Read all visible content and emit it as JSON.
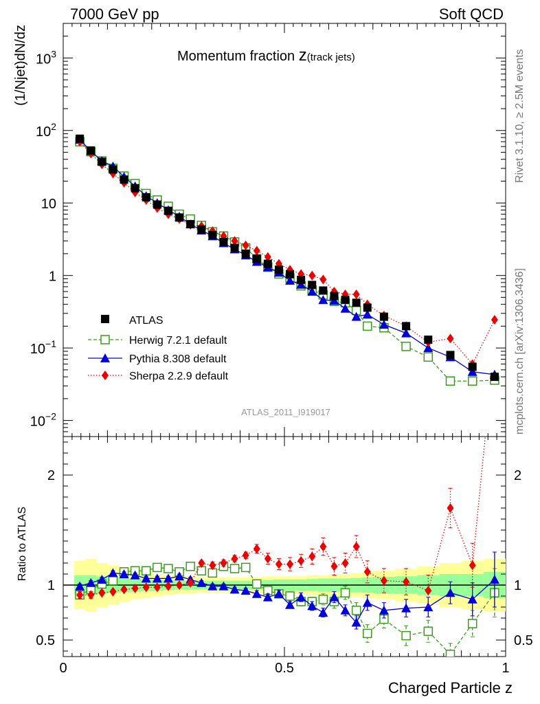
{
  "header": {
    "left": "7000 GeV pp",
    "right": "Soft QCD"
  },
  "title_main": "Momentum fraction ",
  "title_z": "z",
  "title_sub": "(track jets)",
  "side_label_top": "Rivet 3.1.10, ≥ 2.5M events",
  "side_label_bottom": "mcplots.cern.ch [arXiv:1306.3436]",
  "analysis_id": "ATLAS_2011_I919017",
  "colors": {
    "atlas": "#000000",
    "herwig": "#3a9c1c",
    "pythia": "#0000dd",
    "sherpa": "#ee0000",
    "band_inner": "#99ff99",
    "band_outer": "#ffff99"
  },
  "chart_data": [
    {
      "type": "scatter",
      "name": "main",
      "ylabel": "(1/Njet)dN/dz",
      "yscale": "log",
      "ylim": [
        0.006,
        3000
      ],
      "xlim": [
        0,
        1
      ],
      "yticks": [
        {
          "value": 0.01,
          "base": "10",
          "exp": "−2"
        },
        {
          "value": 0.1,
          "base": "10",
          "exp": "−1"
        },
        {
          "value": 1,
          "label": "1"
        },
        {
          "value": 10,
          "label": "10"
        },
        {
          "value": 100,
          "base": "10",
          "exp": "2"
        },
        {
          "value": 1000,
          "base": "10",
          "exp": "3"
        }
      ],
      "x": [
        0.0375,
        0.0625,
        0.0875,
        0.1125,
        0.1375,
        0.1625,
        0.1875,
        0.2125,
        0.2375,
        0.2625,
        0.2875,
        0.3125,
        0.3375,
        0.3625,
        0.3875,
        0.4125,
        0.4375,
        0.4625,
        0.4875,
        0.5125,
        0.5375,
        0.5625,
        0.5875,
        0.6125,
        0.6375,
        0.6625,
        0.6875,
        0.725,
        0.775,
        0.825,
        0.875,
        0.925,
        0.975
      ],
      "series": [
        {
          "name": "ATLAS",
          "key": "atlas",
          "values": [
            77,
            53,
            37,
            29,
            21,
            16,
            12,
            9.5,
            7.8,
            6.3,
            5.1,
            4.3,
            3.6,
            2.9,
            2.4,
            2.0,
            1.7,
            1.45,
            1.2,
            1.04,
            0.87,
            0.74,
            0.62,
            0.52,
            0.46,
            0.42,
            0.36,
            0.27,
            0.2,
            0.13,
            0.08,
            0.055,
            0.04
          ]
        },
        {
          "name": "Herwig 7.2.1 default",
          "key": "herwig",
          "values": [
            70,
            51,
            38,
            30,
            23.5,
            18.5,
            13.5,
            11,
            9.0,
            7.0,
            6.0,
            4.9,
            4.0,
            3.5,
            2.9,
            2.4,
            1.7,
            1.3,
            1.05,
            0.92,
            0.72,
            0.63,
            0.54,
            0.44,
            0.42,
            0.33,
            0.2,
            0.19,
            0.105,
            0.075,
            0.035,
            0.035,
            0.036
          ]
        },
        {
          "name": "Pythia 8.308 default",
          "key": "pythia",
          "values": [
            75,
            52,
            38,
            32,
            23,
            17,
            12.5,
            10,
            8.0,
            6.5,
            5.1,
            4.2,
            3.5,
            2.8,
            2.3,
            1.9,
            1.55,
            1.3,
            1.1,
            0.85,
            0.75,
            0.6,
            0.46,
            0.45,
            0.35,
            0.27,
            0.29,
            0.21,
            0.16,
            0.1,
            0.075,
            0.047,
            0.043
          ]
        },
        {
          "name": "Sherpa 2.2.9 default",
          "key": "sherpa",
          "values": [
            70,
            48,
            34,
            25.5,
            19,
            14,
            11,
            8.5,
            7.0,
            6.0,
            5.0,
            4.8,
            4.1,
            3.5,
            3.0,
            2.6,
            2.2,
            1.8,
            1.45,
            1.2,
            1.05,
            1.0,
            0.88,
            0.6,
            0.55,
            0.55,
            0.4,
            0.28,
            0.2,
            0.12,
            0.135,
            0.06,
            0.245
          ]
        }
      ]
    },
    {
      "type": "line",
      "name": "ratio",
      "ylabel": "Ratio to ATLAS",
      "ylim": [
        0.35,
        2.35
      ],
      "xlim": [
        0,
        1
      ],
      "xlabel": "Charged Particle z",
      "xticks": [
        {
          "value": 0,
          "label": "0"
        },
        {
          "value": 0.5,
          "label": "0.5"
        },
        {
          "value": 1,
          "label": "1"
        }
      ],
      "yticks": [
        {
          "value": 0.5,
          "label": "0.5"
        },
        {
          "value": 1,
          "label": "1"
        },
        {
          "value": 2,
          "label": "2"
        }
      ],
      "reference_line": 1,
      "band_edges": [
        0.025,
        0.05,
        0.075,
        0.1,
        0.125,
        0.15,
        0.175,
        0.2,
        0.225,
        0.25,
        0.275,
        0.3,
        0.325,
        0.35,
        0.375,
        0.4,
        0.425,
        0.45,
        0.475,
        0.5,
        0.525,
        0.55,
        0.575,
        0.6,
        0.625,
        0.65,
        0.675,
        0.7,
        0.75,
        0.8,
        0.85,
        0.9,
        0.95,
        1.0
      ],
      "band_inner": [
        0.09,
        0.09,
        0.08,
        0.07,
        0.065,
        0.06,
        0.055,
        0.05,
        0.045,
        0.04,
        0.04,
        0.04,
        0.04,
        0.04,
        0.04,
        0.04,
        0.04,
        0.045,
        0.05,
        0.05,
        0.05,
        0.055,
        0.06,
        0.06,
        0.06,
        0.065,
        0.07,
        0.075,
        0.08,
        0.09,
        0.1,
        0.1,
        0.12
      ],
      "band_outer": [
        0.22,
        0.24,
        0.2,
        0.18,
        0.15,
        0.13,
        0.12,
        0.1,
        0.09,
        0.08,
        0.08,
        0.07,
        0.07,
        0.07,
        0.07,
        0.07,
        0.07,
        0.08,
        0.08,
        0.08,
        0.08,
        0.09,
        0.09,
        0.1,
        0.1,
        0.11,
        0.12,
        0.13,
        0.15,
        0.17,
        0.2,
        0.22,
        0.24
      ],
      "x": [
        0.0375,
        0.0625,
        0.0875,
        0.1125,
        0.1375,
        0.1625,
        0.1875,
        0.2125,
        0.2375,
        0.2625,
        0.2875,
        0.3125,
        0.3375,
        0.3625,
        0.3875,
        0.4125,
        0.4375,
        0.4625,
        0.4875,
        0.5125,
        0.5375,
        0.5625,
        0.5875,
        0.6125,
        0.6375,
        0.6625,
        0.6875,
        0.725,
        0.775,
        0.825,
        0.875,
        0.925,
        0.975
      ],
      "series": [
        {
          "name": "Herwig 7.2.1 default",
          "key": "herwig",
          "values": [
            0.91,
            0.96,
            1.01,
            1.04,
            1.12,
            1.13,
            1.13,
            1.16,
            1.15,
            1.12,
            1.17,
            1.13,
            1.11,
            1.17,
            1.15,
            1.16,
            1.01,
            0.95,
            0.92,
            0.9,
            0.85,
            0.85,
            0.87,
            0.85,
            0.93,
            0.77,
            0.56,
            0.69,
            0.54,
            0.58,
            0.37,
            0.65,
            0.93
          ],
          "errors": [
            0.03,
            0.03,
            0.02,
            0.02,
            0.02,
            0.02,
            0.02,
            0.02,
            0.02,
            0.02,
            0.02,
            0.02,
            0.02,
            0.02,
            0.02,
            0.02,
            0.03,
            0.03,
            0.03,
            0.04,
            0.04,
            0.04,
            0.05,
            0.06,
            0.06,
            0.07,
            0.08,
            0.08,
            0.09,
            0.1,
            0.1,
            0.12,
            0.22
          ]
        },
        {
          "name": "Pythia 8.308 default",
          "key": "pythia",
          "values": [
            0.99,
            1.02,
            1.05,
            1.11,
            1.1,
            1.09,
            1.06,
            1.06,
            1.06,
            1.08,
            1.05,
            1.02,
            0.99,
            0.99,
            0.96,
            0.95,
            0.92,
            0.89,
            0.92,
            0.82,
            0.89,
            0.81,
            0.75,
            0.89,
            0.77,
            0.66,
            0.84,
            0.77,
            0.79,
            0.8,
            0.93,
            0.87,
            1.05
          ],
          "errors": [
            0.02,
            0.02,
            0.02,
            0.02,
            0.02,
            0.02,
            0.02,
            0.02,
            0.02,
            0.02,
            0.02,
            0.02,
            0.02,
            0.02,
            0.02,
            0.02,
            0.03,
            0.03,
            0.03,
            0.03,
            0.04,
            0.04,
            0.04,
            0.05,
            0.05,
            0.06,
            0.07,
            0.07,
            0.08,
            0.09,
            0.1,
            0.15,
            0.25
          ]
        },
        {
          "name": "Sherpa 2.2.9 default",
          "key": "sherpa",
          "values": [
            0.91,
            0.91,
            0.93,
            0.94,
            0.96,
            0.97,
            0.98,
            0.98,
            0.99,
            1.0,
            1.02,
            1.2,
            1.18,
            1.2,
            1.24,
            1.27,
            1.33,
            1.24,
            1.19,
            1.19,
            1.22,
            1.26,
            1.35,
            1.17,
            1.2,
            1.35,
            1.12,
            1.04,
            1.03,
            0.95,
            1.7,
            1.18,
            3.2
          ],
          "errors": [
            0.03,
            0.03,
            0.02,
            0.02,
            0.02,
            0.02,
            0.02,
            0.02,
            0.02,
            0.02,
            0.02,
            0.02,
            0.03,
            0.03,
            0.03,
            0.03,
            0.04,
            0.05,
            0.05,
            0.06,
            0.06,
            0.07,
            0.08,
            0.08,
            0.09,
            0.1,
            0.1,
            0.11,
            0.12,
            0.14,
            0.18,
            0.2,
            0.6
          ]
        }
      ]
    }
  ]
}
